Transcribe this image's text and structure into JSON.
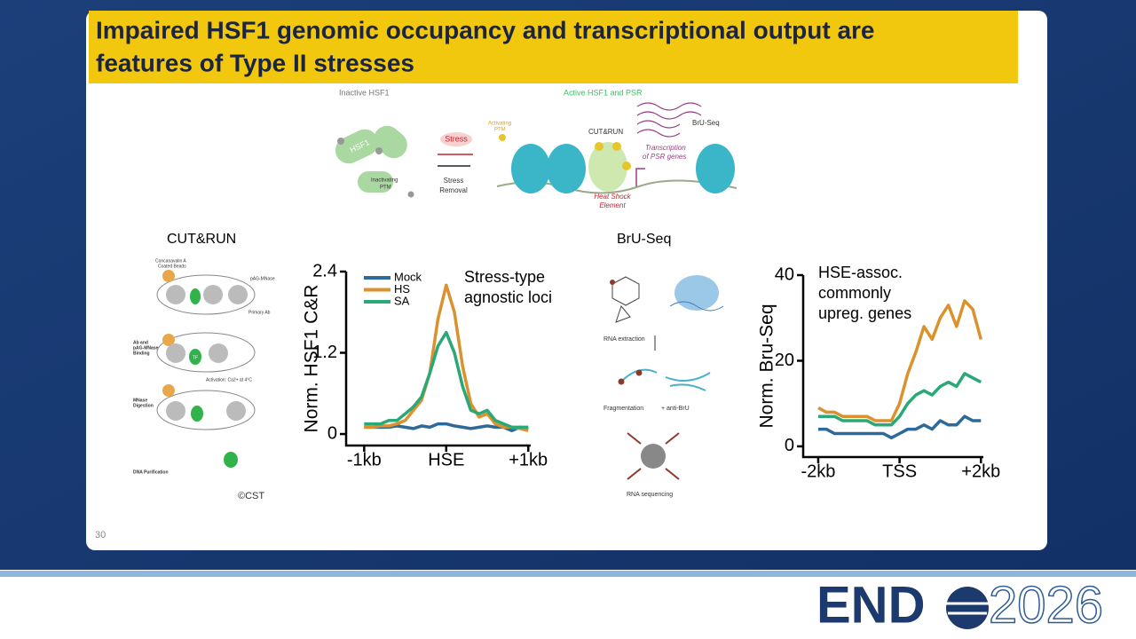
{
  "slide": {
    "title": [
      "Impaired HSF1 genomic occupancy and transcriptional output are",
      "features of Type II stresses"
    ],
    "page_number": "30",
    "top_diagram": {
      "inactive_label": "Inactive HSF1",
      "active_label": "Active HSF1 and PSR",
      "hsf1": "HSF1",
      "stress": "Stress",
      "stress_removal": [
        "Stress",
        "Removal"
      ],
      "inactivating_ptm": [
        "Inactivating",
        "PTM"
      ],
      "activating_ptm": [
        "Activating",
        "PTM"
      ],
      "cut_run": "CUT&RUN",
      "bru_seq": "BrU-Seq",
      "transcription": [
        "Transcription",
        "of PSR genes"
      ],
      "hse": [
        "Heat Shock",
        "Element"
      ]
    },
    "cutrun_panel": {
      "heading": "CUT&RUN",
      "beads": [
        "Concanavalin A",
        "Coated Beads"
      ],
      "pag": "pAG-MNase",
      "primary_ab": "Primary Ab",
      "binding": [
        "Ab and",
        "pAG-MNase",
        "Binding"
      ],
      "activation": "Activation: Ca2+ at 4°C",
      "digestion": [
        "MNase",
        "Digestion"
      ],
      "purification": "DNA Purification",
      "tf": "TF",
      "credit": "©CST"
    },
    "bruseq_panel": {
      "heading": "BrU-Seq",
      "extraction": "RNA extraction",
      "fragmentation": "Fragmentation",
      "anti_bru": "+ anti-BrU",
      "sequencing": "RNA sequencing"
    },
    "logo": {
      "left": "END",
      "right": "2026"
    }
  },
  "chart_data": [
    {
      "type": "line",
      "ylabel": "Norm. HSF1 C&R",
      "annotation": [
        "Stress-type",
        "agnostic loci"
      ],
      "x": [
        -1000,
        -900,
        -800,
        -700,
        -600,
        -500,
        -400,
        -300,
        -200,
        -100,
        0,
        100,
        200,
        300,
        400,
        500,
        600,
        700,
        800,
        900,
        1000
      ],
      "xlim": [
        -1220,
        1030
      ],
      "xticks": [
        {
          "value": -1000,
          "label": "-1kb"
        },
        {
          "value": 0,
          "label": "HSE"
        },
        {
          "value": 1000,
          "label": "+1kb"
        }
      ],
      "ylim": [
        -0.17,
        2.4
      ],
      "yticks": [
        0,
        1.2,
        2.4
      ],
      "series": [
        {
          "name": "Mock",
          "color": "#2b6a9a",
          "values": [
            0.1,
            0.1,
            0.1,
            0.1,
            0.12,
            0.1,
            0.08,
            0.12,
            0.1,
            0.15,
            0.15,
            0.12,
            0.1,
            0.08,
            0.1,
            0.12,
            0.1,
            0.1,
            0.05,
            0.1,
            0.08
          ]
        },
        {
          "name": "HS",
          "color": "#d9922e",
          "values": [
            0.1,
            0.1,
            0.12,
            0.12,
            0.15,
            0.2,
            0.35,
            0.5,
            0.9,
            1.7,
            2.2,
            1.8,
            1.0,
            0.45,
            0.25,
            0.3,
            0.15,
            0.1,
            0.1,
            0.08,
            0.05
          ]
        },
        {
          "name": "SA",
          "color": "#2aa876",
          "values": [
            0.15,
            0.15,
            0.15,
            0.2,
            0.2,
            0.3,
            0.4,
            0.55,
            0.9,
            1.3,
            1.5,
            1.2,
            0.7,
            0.35,
            0.3,
            0.35,
            0.2,
            0.15,
            0.1,
            0.1,
            0.1
          ]
        }
      ]
    },
    {
      "type": "line",
      "ylabel": "Norm. Bru-Seq",
      "annotation": [
        "HSE-assoc.",
        "commonly",
        "upreg. genes"
      ],
      "x": [
        -2000,
        -1800,
        -1600,
        -1400,
        -1200,
        -1000,
        -800,
        -600,
        -400,
        -200,
        0,
        200,
        400,
        600,
        800,
        1000,
        1200,
        1400,
        1600,
        1800,
        2000
      ],
      "xlim": [
        -2370,
        2060
      ],
      "xticks": [
        {
          "value": -2000,
          "label": "-2kb"
        },
        {
          "value": 0,
          "label": "TSS"
        },
        {
          "value": 2000,
          "label": "+2kb"
        }
      ],
      "ylim": [
        -2.5,
        40
      ],
      "yticks": [
        0,
        20,
        40
      ],
      "series": [
        {
          "color": "#d9922e",
          "values": [
            9,
            8,
            8,
            7,
            7,
            7,
            7,
            6,
            6,
            6,
            10,
            17,
            22,
            28,
            25,
            30,
            33,
            28,
            34,
            32,
            25
          ]
        },
        {
          "color": "#2aa876",
          "values": [
            7,
            7,
            7,
            6,
            6,
            6,
            6,
            5,
            5,
            5,
            7,
            10,
            12,
            13,
            12,
            14,
            15,
            14,
            17,
            16,
            15
          ]
        },
        {
          "color": "#2b6a9a",
          "values": [
            4,
            4,
            3,
            3,
            3,
            3,
            3,
            3,
            3,
            2,
            3,
            4,
            4,
            5,
            4,
            6,
            5,
            5,
            7,
            6,
            6
          ]
        }
      ]
    }
  ]
}
